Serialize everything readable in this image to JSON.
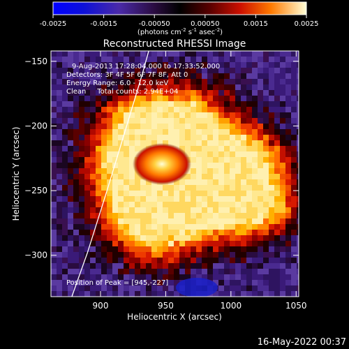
{
  "colorbar": {
    "ticks": [
      "-0.0025",
      "-0.0015",
      "-0.00050",
      "0.00050",
      "0.0015",
      "0.0025"
    ],
    "units_main": "(photons cm",
    "units_exp1": "-2",
    "units_mid": " s",
    "units_exp2": "-1",
    "units_end": " asec",
    "units_exp3": "-2",
    "units_close": ")",
    "range": [
      -0.0025,
      0.0025
    ]
  },
  "chart_data": {
    "type": "heatmap",
    "title": "Reconstructed RHESSI Image",
    "xlabel": "Heliocentric X (arcsec)",
    "ylabel": "Heliocentric Y (arcsec)",
    "xlim": [
      862,
      1052
    ],
    "ylim": [
      -332,
      -142
    ],
    "xticks": [
      900,
      950,
      1000,
      1050
    ],
    "yticks": [
      -150,
      -200,
      -250,
      -300
    ],
    "peak": [
      945,
      -227
    ],
    "annotations": [
      "9-Aug-2013 17:28:04.000 to 17:33:52.000",
      "Detectors: 3F 4F 5F 6F 7F 8F, Att 0",
      "Energy Range: 6.0 - 12.0 keV",
      "Clean     Total counts: 2.94E+04"
    ],
    "peak_label": "Position of Peak = [945,-227]",
    "limb_curve": [
      [
        878,
        -332
      ],
      [
        890,
        -298
      ],
      [
        905,
        -250
      ],
      [
        920,
        -200
      ],
      [
        932,
        -160
      ],
      [
        937,
        -142
      ]
    ]
  },
  "footer": {
    "timestamp": "16-May-2022 00:37"
  }
}
